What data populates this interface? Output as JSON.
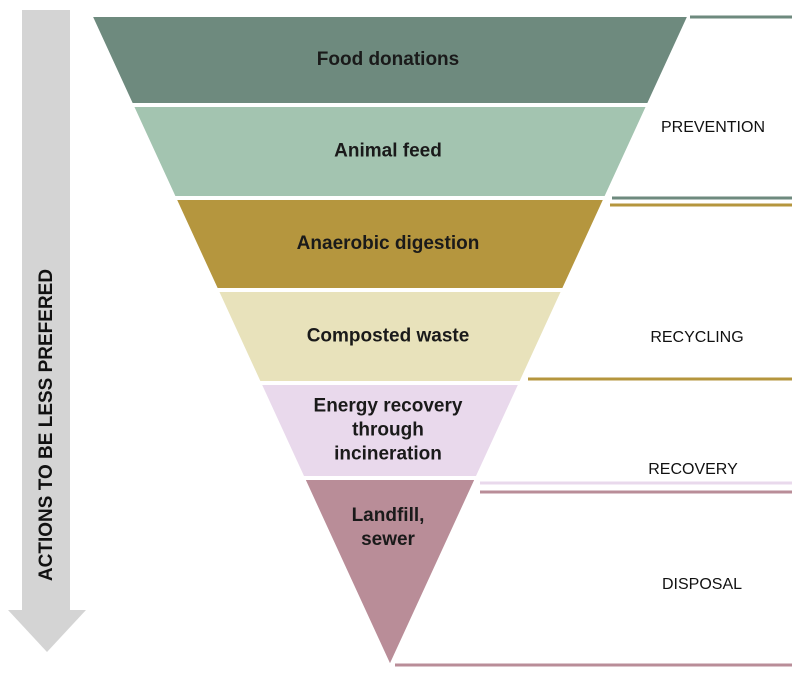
{
  "arrow_label": "ACTIONS TO BE LESS PREFERED",
  "levels": [
    {
      "lines": [
        "Food donations"
      ],
      "color": "#6e8a7e"
    },
    {
      "lines": [
        "Animal feed"
      ],
      "color": "#a3c4b0"
    },
    {
      "lines": [
        "Anaerobic digestion"
      ],
      "color": "#b5963e"
    },
    {
      "lines": [
        "Composted waste"
      ],
      "color": "#e8e2bb"
    },
    {
      "lines": [
        "Energy recovery",
        "through",
        "incineration"
      ],
      "color": "#e9d9ec"
    },
    {
      "lines": [
        "Landfill,",
        "sewer"
      ],
      "color": "#b98d98"
    }
  ],
  "groups": [
    {
      "label": "PREVENTION",
      "color": "#6e8a7e"
    },
    {
      "label": "RECYCLING",
      "color": "#b5963e"
    },
    {
      "label": "RECOVERY",
      "color": "#e9d9ec"
    },
    {
      "label": "DISPOSAL",
      "color": "#b98d98"
    }
  ]
}
